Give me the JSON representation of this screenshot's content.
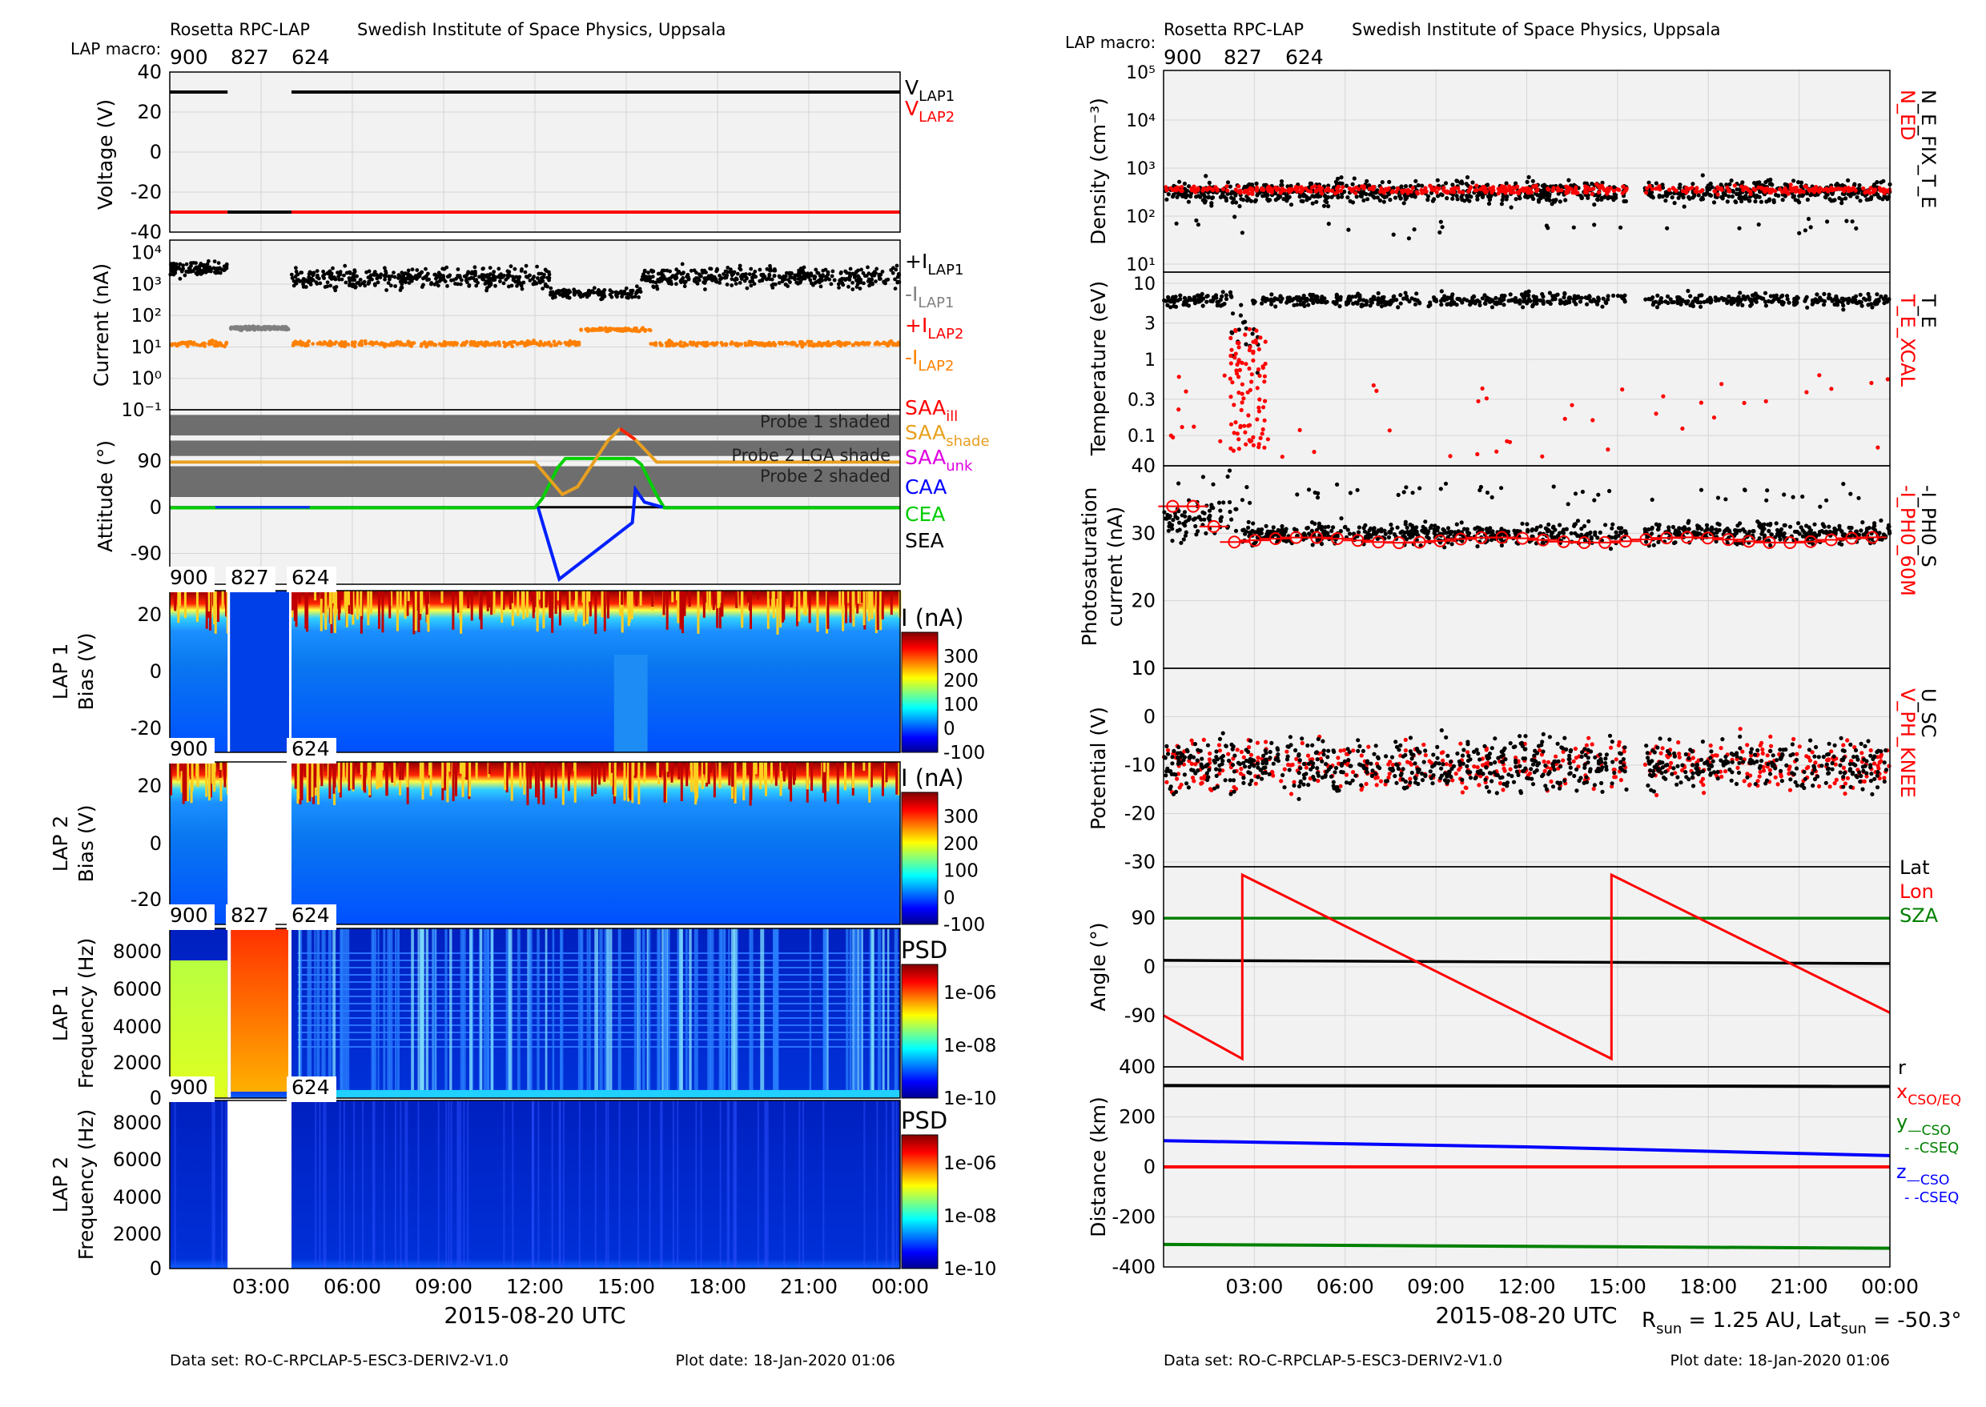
{
  "left": {
    "header": {
      "instrument": "Rosetta RPC-LAP",
      "institute": "Swedish Institute of Space Physics, Uppsala",
      "macro_label": "LAP macro:",
      "macros": [
        "900",
        "827",
        "624"
      ]
    },
    "footer": {
      "dataset": "Data set: RO-C-RPCLAP-5-ESC3-DERIV2-V1.0",
      "plot_date": "Plot date: 18-Jan-2020 01:06"
    },
    "xlabel": "2015-08-20 UTC",
    "xticks": [
      "03:00",
      "06:00",
      "09:00",
      "12:00",
      "15:00",
      "18:00",
      "21:00",
      "00:00"
    ]
  },
  "right": {
    "header": {
      "instrument": "Rosetta RPC-LAP",
      "institute": "Swedish Institute of Space Physics, Uppsala",
      "macro_label": "LAP macro:",
      "macros": [
        "900",
        "827",
        "624"
      ]
    },
    "footer": {
      "dataset": "Data set: RO-C-RPCLAP-5-ESC3-DERIV2-V1.0",
      "plot_date": "Plot date: 18-Jan-2020 01:06"
    },
    "xlabel": "2015-08-20 UTC",
    "xticks": [
      "03:00",
      "06:00",
      "09:00",
      "12:00",
      "15:00",
      "18:00",
      "21:00",
      "00:00"
    ],
    "sun_info": {
      "r": "R",
      "r_sub": "sun",
      "r_val": " = 1.25 AU, Lat",
      "lat_sub": "sun",
      "lat_val": " = -50.3°"
    }
  },
  "chart_data": [
    {
      "id": "voltage",
      "type": "line",
      "ylabel": "Voltage (V)",
      "yticks": [
        "40",
        "20",
        "0",
        "-20",
        "-40"
      ],
      "ylim": [
        -40,
        40
      ],
      "legend": [
        {
          "text": "V",
          "sub": "LAP1",
          "color": "#000000"
        },
        {
          "text": "V",
          "sub": "LAP2",
          "color": "#ff0000"
        }
      ],
      "series": [
        {
          "segments": [
            [
              0.0,
              1.9,
              30
            ],
            [
              4.0,
              24.0,
              30
            ]
          ],
          "color": "#000000"
        },
        {
          "segments": [
            [
              0.0,
              1.9,
              -30
            ],
            [
              4.0,
              24.0,
              -30
            ]
          ],
          "color": "#ff0000"
        },
        {
          "segments": [
            [
              1.9,
              4.0,
              -30
            ]
          ],
          "color": "#000000"
        }
      ]
    },
    {
      "id": "current",
      "type": "scatter",
      "ylabel": "Current (nA)",
      "yticks": [
        "10⁴",
        "10³",
        "10²",
        "10¹",
        "10⁰",
        "10⁻¹"
      ],
      "log": true,
      "ylim": [
        -1,
        4.4
      ],
      "legend": [
        {
          "text": "+I",
          "sub": "LAP1",
          "color": "#000000"
        },
        {
          "text": "-I",
          "sub": "LAP1",
          "color": "#808080"
        },
        {
          "text": "+I",
          "sub": "LAP2",
          "color": "#ff0000"
        },
        {
          "text": "-I",
          "sub": "LAP2",
          "color": "#ff8000"
        }
      ]
    },
    {
      "id": "attitude",
      "type": "line",
      "ylabel": "Attitude (°)",
      "yticks": [
        "90",
        "0",
        "-90"
      ],
      "ylim": [
        -150,
        190
      ],
      "bands": [
        {
          "y0": 140,
          "y1": 180,
          "text": "Probe 1 shaded"
        },
        {
          "y0": 100,
          "y1": 130,
          "text": "Probe 2 LGA shade"
        },
        {
          "y0": 20,
          "y1": 80,
          "text": "Probe 2 shaded"
        }
      ],
      "legend": [
        {
          "text": "SAA",
          "sub": "ill",
          "color": "#ff0000"
        },
        {
          "text": "SAA",
          "sub": "shade",
          "color": "#e8a020"
        },
        {
          "text": "SAA",
          "sub": "unk",
          "color": "#e000e0"
        },
        {
          "text": "CAA",
          "sub": "",
          "color": "#0000ff"
        },
        {
          "text": "CEA",
          "sub": "",
          "color": "#00cc00"
        },
        {
          "text": "SEA",
          "sub": "",
          "color": "#000000"
        }
      ]
    },
    {
      "id": "lap1_bias",
      "type": "heatmap",
      "ylabel": "LAP 1",
      "ylabel2": "Bias (V)",
      "yticks": [
        "20",
        "0",
        "-20"
      ],
      "cbar_title": "I (nA)",
      "cbar_ticks": [
        "300",
        "200",
        "100",
        "0",
        "-100"
      ],
      "macros": [
        "900",
        "827",
        "624"
      ]
    },
    {
      "id": "lap2_bias",
      "type": "heatmap",
      "ylabel": "LAP 2",
      "ylabel2": "Bias (V)",
      "yticks": [
        "20",
        "0",
        "-20"
      ],
      "cbar_title": "I (nA)",
      "cbar_ticks": [
        "300",
        "200",
        "100",
        "0",
        "-100"
      ],
      "macros": [
        "900",
        "624"
      ]
    },
    {
      "id": "lap1_psd",
      "type": "heatmap",
      "ylabel": "LAP 1",
      "ylabel2": "Frequency (Hz)",
      "yticks": [
        "8000",
        "6000",
        "4000",
        "2000",
        "0"
      ],
      "cbar_title": "PSD",
      "cbar_ticks": [
        "1e-06",
        "1e-08",
        "1e-10"
      ],
      "macros": [
        "900",
        "827",
        "624"
      ]
    },
    {
      "id": "lap2_psd",
      "type": "heatmap",
      "ylabel": "LAP 2",
      "ylabel2": "Frequency (Hz)",
      "yticks": [
        "8000",
        "6000",
        "4000",
        "2000",
        "0"
      ],
      "cbar_title": "PSD",
      "cbar_ticks": [
        "1e-06",
        "1e-08",
        "1e-10"
      ],
      "macros": [
        "900",
        "624"
      ]
    },
    {
      "id": "density",
      "type": "scatter",
      "ylabel": "Density (cm⁻³)",
      "yticks": [
        "10⁵",
        "10⁴",
        "10³",
        "10²",
        "10¹"
      ],
      "log": true,
      "legend": [
        {
          "text": "N_ED",
          "color": "#ff0000"
        },
        {
          "text": "N_E_FIX_T_E",
          "color": "#000000"
        }
      ]
    },
    {
      "id": "temperature",
      "type": "scatter",
      "ylabel": "Temperature (eV)",
      "yticks": [
        "10",
        "3",
        "1",
        "0.3",
        "0.1"
      ],
      "log": true,
      "legend": [
        {
          "text": "T_E_XCAL",
          "color": "#ff0000"
        },
        {
          "text": "T_E",
          "color": "#000000"
        }
      ]
    },
    {
      "id": "photosat",
      "type": "scatter",
      "ylabel": "Photosaturation",
      "ylabel2": "current (nA)",
      "yticks": [
        "40",
        "30",
        "20",
        "10"
      ],
      "legend": [
        {
          "text": "-I_PH0_60M",
          "color": "#ff0000"
        },
        {
          "text": "-I_PH0_S",
          "color": "#000000"
        }
      ]
    },
    {
      "id": "potential",
      "type": "scatter",
      "ylabel": "Potential (V)",
      "yticks": [
        "10",
        "0",
        "-10",
        "-20",
        "-30"
      ],
      "legend": [
        {
          "text": "V_PH_KNEE",
          "color": "#ff0000"
        },
        {
          "text": "U_SC",
          "color": "#000000"
        }
      ]
    },
    {
      "id": "angle",
      "type": "line",
      "ylabel": "Angle (°)",
      "yticks": [
        "90",
        "0",
        "-90"
      ],
      "legend": [
        {
          "text": "Lat",
          "color": "#000000"
        },
        {
          "text": "Lon",
          "color": "#ff0000"
        },
        {
          "text": "SZA",
          "color": "#008000"
        }
      ]
    },
    {
      "id": "distance",
      "type": "line",
      "ylabel": "Distance (km)",
      "yticks": [
        "400",
        "200",
        "0",
        "-200",
        "-400"
      ],
      "ylim": [
        -400,
        400
      ],
      "legend": [
        {
          "text": "r",
          "color": "#000000"
        },
        {
          "text": "x",
          "sub": "CSO/EQ",
          "color": "#ff0000"
        },
        {
          "text": "y",
          "sub": "—CSO",
          "color": "#008000"
        },
        {
          "text": "- -CSEQ",
          "color": "#008000"
        },
        {
          "text": "z",
          "sub": "—CSO",
          "color": "#0000ff"
        },
        {
          "text": "- -CSEQ",
          "color": "#0000ff"
        }
      ]
    }
  ]
}
